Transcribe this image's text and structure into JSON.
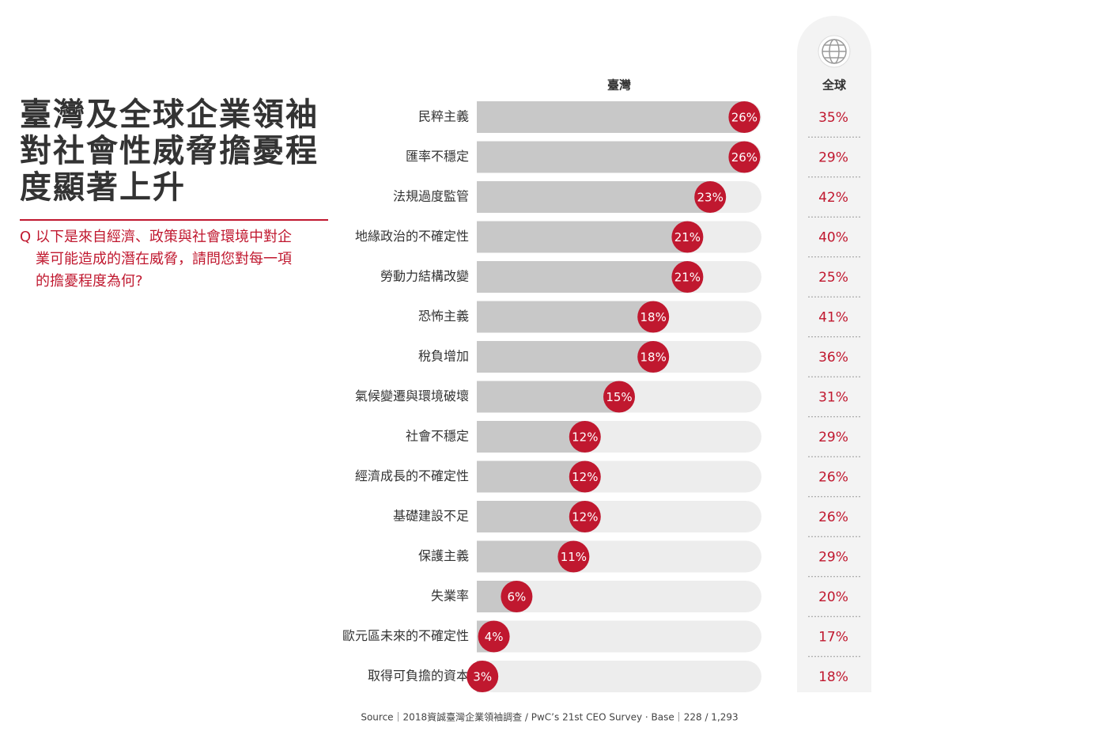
{
  "chart_data": {
    "type": "bar",
    "orientation": "horizontal",
    "title": "臺灣及全球企業領袖對社會性威脅擔憂程度顯著上升",
    "question_marker": "Q",
    "question": "以下是來自經濟、政策與社會環境中對企業可能造成的潛在威脅，請問您對每一項的擔憂程度為何?",
    "categories": [
      "民粹主義",
      "匯率不穩定",
      "法規過度監管",
      "地緣政治的不確定性",
      "勞動力結構改變",
      "恐怖主義",
      "稅負增加",
      "氣候變遷與環境破壞",
      "社會不穩定",
      "經濟成長的不確定性",
      "基礎建設不足",
      "保護主義",
      "失業率",
      "歐元區未來的不確定性",
      "取得可負擔的資本"
    ],
    "xlim": [
      0,
      27.5
    ],
    "series": [
      {
        "name": "臺灣",
        "color": "#c0182f",
        "values": [
          26,
          26,
          23,
          21,
          21,
          18,
          18,
          15,
          12,
          12,
          12,
          11,
          6,
          4,
          3
        ],
        "value_labels": [
          "26%",
          "26%",
          "23%",
          "21%",
          "21%",
          "18%",
          "18%",
          "15%",
          "12%",
          "12%",
          "12%",
          "11%",
          "6%",
          "4%",
          "3%"
        ]
      },
      {
        "name": "全球",
        "color": "#c0182f",
        "values": [
          35,
          29,
          42,
          40,
          25,
          41,
          36,
          31,
          29,
          26,
          26,
          29,
          20,
          17,
          18
        ],
        "value_labels": [
          "35%",
          "29%",
          "42%",
          "40%",
          "25%",
          "41%",
          "36%",
          "31%",
          "29%",
          "26%",
          "26%",
          "29%",
          "20%",
          "17%",
          "18%"
        ]
      }
    ],
    "source": "Source｜2018資誠臺灣企業領袖調查 / PwC’s 21st CEO Survey · Base｜228 / 1,293"
  }
}
